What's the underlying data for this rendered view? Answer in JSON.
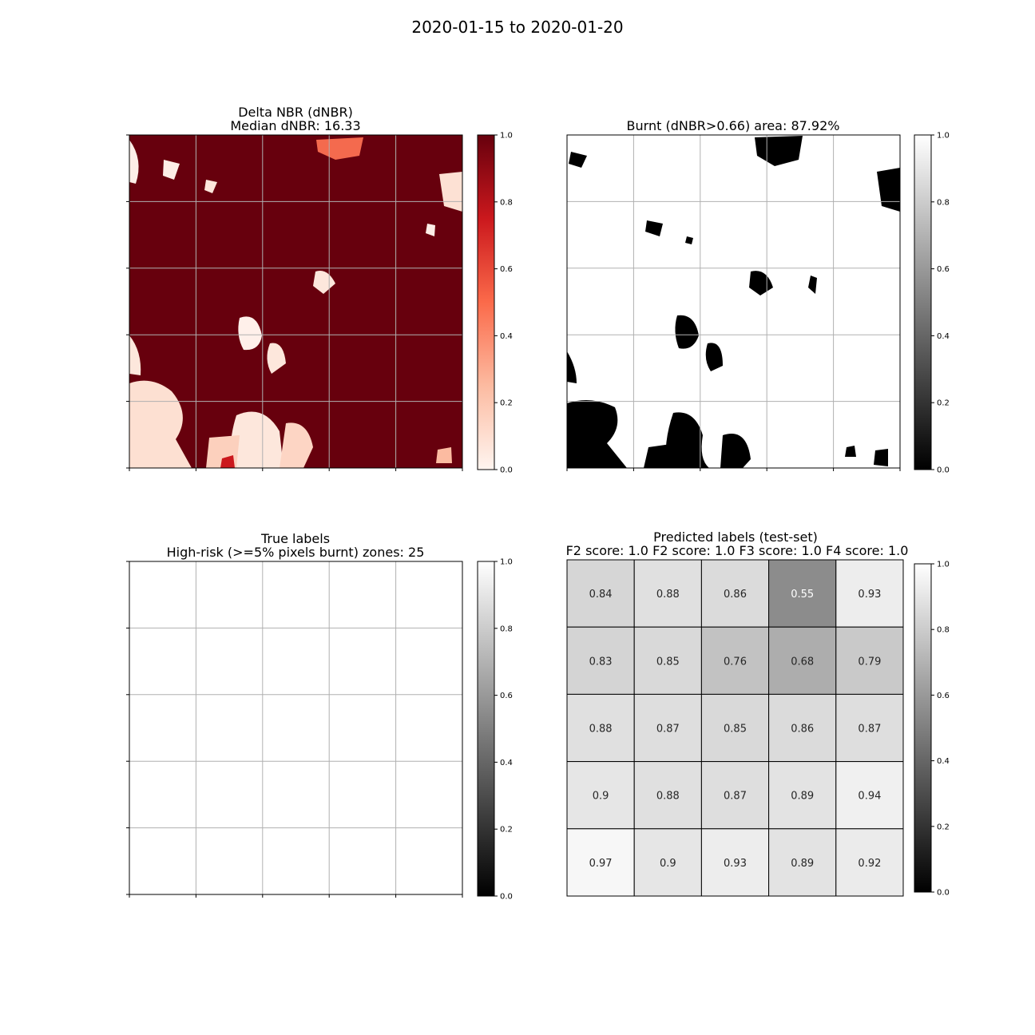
{
  "figure": {
    "suptitle": "2020-01-15 to 2020-01-20"
  },
  "colors": {
    "reds_dark": "#67000d",
    "reds_mid": "#ef3b2c",
    "reds_light": "#fcbba1",
    "white": "#ffffff",
    "black": "#000000",
    "grid": "#b0b0b0"
  },
  "chart_data": [
    {
      "type": "heatmap",
      "panel": "delta-nbr",
      "title": "Delta NBR (dNBR)",
      "subtitle": "Median dNBR: 16.33",
      "colormap": "Reds",
      "clim": [
        0.0,
        1.0
      ],
      "colorbar_ticks": [
        "0.0",
        "0.2",
        "0.4",
        "0.6",
        "0.8",
        "1.0"
      ],
      "grid": true,
      "grid_divisions": 5,
      "note_values": "raster of mostly saturated (1.0) pixels with light patches"
    },
    {
      "type": "heatmap",
      "panel": "burnt-area",
      "title": "Burnt (dNBR>0.66) area: 87.92%",
      "colormap": "gray",
      "clim": [
        0.0,
        1.0
      ],
      "colorbar_ticks": [
        "0.0",
        "0.2",
        "0.4",
        "0.6",
        "0.8",
        "1.0"
      ],
      "grid": true,
      "grid_divisions": 5
    },
    {
      "type": "heatmap",
      "panel": "true-labels",
      "title": "True labels",
      "subtitle": "High-risk (>=5% pixels burnt) zones: 25",
      "colormap": "gray",
      "clim": [
        0.0,
        1.0
      ],
      "colorbar_ticks": [
        "0.0",
        "0.2",
        "0.4",
        "0.6",
        "0.8",
        "1.0"
      ],
      "grid": true,
      "grid_divisions": 5,
      "values": [
        [
          1,
          1,
          1,
          1,
          1
        ],
        [
          1,
          1,
          1,
          1,
          1
        ],
        [
          1,
          1,
          1,
          1,
          1
        ],
        [
          1,
          1,
          1,
          1,
          1
        ],
        [
          1,
          1,
          1,
          1,
          1
        ]
      ]
    },
    {
      "type": "heatmap",
      "panel": "predicted-labels",
      "title": "Predicted labels (test-set)",
      "subtitle": "F2 score: 1.0 F2 score: 1.0 F3 score: 1.0 F4 score: 1.0",
      "colormap": "gray",
      "clim": [
        0.0,
        1.0
      ],
      "colorbar_ticks": [
        "0.0",
        "0.2",
        "0.4",
        "0.6",
        "0.8",
        "1.0"
      ],
      "values": [
        [
          0.84,
          0.88,
          0.86,
          0.55,
          0.93
        ],
        [
          0.83,
          0.85,
          0.76,
          0.68,
          0.79
        ],
        [
          0.88,
          0.87,
          0.85,
          0.86,
          0.87
        ],
        [
          0.9,
          0.88,
          0.87,
          0.89,
          0.94
        ],
        [
          0.97,
          0.9,
          0.93,
          0.89,
          0.92
        ]
      ],
      "labels": [
        [
          "0.84",
          "0.88",
          "0.86",
          "0.55",
          "0.93"
        ],
        [
          "0.83",
          "0.85",
          "0.76",
          "0.68",
          "0.79"
        ],
        [
          "0.88",
          "0.87",
          "0.85",
          "0.86",
          "0.87"
        ],
        [
          "0.9",
          "0.88",
          "0.87",
          "0.89",
          "0.94"
        ],
        [
          "0.97",
          "0.9",
          "0.93",
          "0.89",
          "0.92"
        ]
      ]
    }
  ]
}
